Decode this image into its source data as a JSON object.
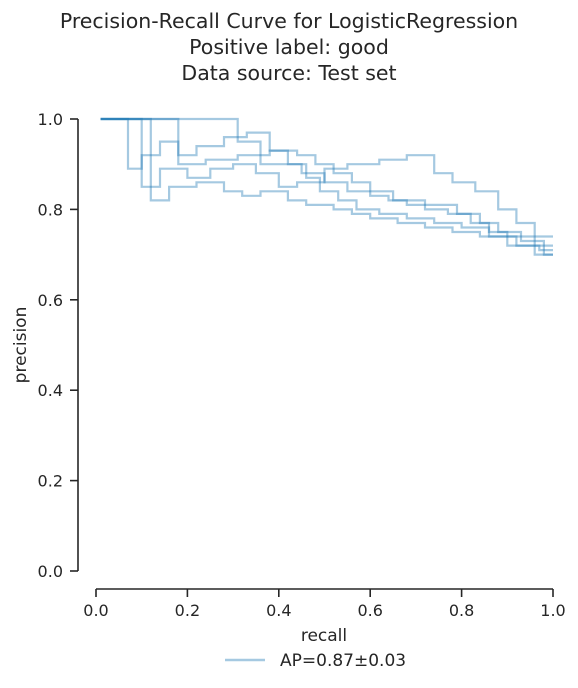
{
  "chart_data": {
    "type": "line",
    "title_lines": [
      "Precision-Recall Curve for LogisticRegression",
      "Positive label: good",
      "Data source: Test set"
    ],
    "xlabel": "recall",
    "ylabel": "precision",
    "xlim": [
      0,
      1
    ],
    "ylim": [
      0,
      1
    ],
    "x_ticks": [
      0.0,
      0.2,
      0.4,
      0.6,
      0.8,
      1.0
    ],
    "x_tick_labels": [
      "0.0",
      "0.2",
      "0.4",
      "0.6",
      "0.8",
      "1.0"
    ],
    "y_ticks": [
      0.0,
      0.2,
      0.4,
      0.6,
      0.8,
      1.0
    ],
    "y_tick_labels": [
      "0.0",
      "0.2",
      "0.4",
      "0.6",
      "0.8",
      "1.0"
    ],
    "grid": false,
    "step": true,
    "legend": {
      "position": "bottom-center",
      "label": "AP=0.87±0.03"
    },
    "series_color": "#1f77b4",
    "series_opacity": 0.4,
    "series": [
      {
        "points": [
          [
            0.01,
            1.0
          ],
          [
            0.31,
            1.0
          ],
          [
            0.31,
            0.95
          ],
          [
            0.36,
            0.95
          ],
          [
            0.36,
            0.9
          ],
          [
            0.45,
            0.9
          ],
          [
            0.45,
            0.88
          ],
          [
            0.5,
            0.88
          ],
          [
            0.5,
            0.86
          ],
          [
            0.55,
            0.86
          ],
          [
            0.55,
            0.84
          ],
          [
            0.6,
            0.84
          ],
          [
            0.6,
            0.83
          ],
          [
            0.64,
            0.83
          ],
          [
            0.64,
            0.82
          ],
          [
            0.68,
            0.82
          ],
          [
            0.68,
            0.81
          ],
          [
            0.72,
            0.81
          ],
          [
            0.72,
            0.8
          ],
          [
            0.77,
            0.8
          ],
          [
            0.77,
            0.79
          ],
          [
            0.82,
            0.79
          ],
          [
            0.82,
            0.77
          ],
          [
            0.86,
            0.77
          ],
          [
            0.86,
            0.75
          ],
          [
            0.9,
            0.75
          ],
          [
            0.9,
            0.74
          ],
          [
            0.96,
            0.74
          ],
          [
            0.96,
            0.72
          ],
          [
            1.0,
            0.72
          ]
        ]
      },
      {
        "points": [
          [
            0.01,
            1.0
          ],
          [
            0.18,
            1.0
          ],
          [
            0.18,
            0.92
          ],
          [
            0.22,
            0.92
          ],
          [
            0.22,
            0.94
          ],
          [
            0.28,
            0.94
          ],
          [
            0.28,
            0.96
          ],
          [
            0.33,
            0.96
          ],
          [
            0.33,
            0.97
          ],
          [
            0.38,
            0.97
          ],
          [
            0.38,
            0.93
          ],
          [
            0.42,
            0.93
          ],
          [
            0.42,
            0.9
          ],
          [
            0.46,
            0.9
          ],
          [
            0.46,
            0.87
          ],
          [
            0.49,
            0.87
          ],
          [
            0.49,
            0.84
          ],
          [
            0.53,
            0.84
          ],
          [
            0.53,
            0.82
          ],
          [
            0.57,
            0.82
          ],
          [
            0.57,
            0.8
          ],
          [
            0.62,
            0.8
          ],
          [
            0.62,
            0.79
          ],
          [
            0.68,
            0.79
          ],
          [
            0.68,
            0.78
          ],
          [
            0.74,
            0.78
          ],
          [
            0.74,
            0.77
          ],
          [
            0.8,
            0.77
          ],
          [
            0.8,
            0.76
          ],
          [
            0.86,
            0.76
          ],
          [
            0.86,
            0.74
          ],
          [
            0.92,
            0.74
          ],
          [
            0.92,
            0.72
          ],
          [
            0.97,
            0.72
          ],
          [
            0.97,
            0.71
          ],
          [
            1.0,
            0.71
          ]
        ]
      },
      {
        "points": [
          [
            0.01,
            1.0
          ],
          [
            0.07,
            1.0
          ],
          [
            0.07,
            0.89
          ],
          [
            0.1,
            0.89
          ],
          [
            0.1,
            0.92
          ],
          [
            0.14,
            0.92
          ],
          [
            0.14,
            0.95
          ],
          [
            0.18,
            0.95
          ],
          [
            0.18,
            0.9
          ],
          [
            0.24,
            0.9
          ],
          [
            0.24,
            0.91
          ],
          [
            0.31,
            0.91
          ],
          [
            0.31,
            0.92
          ],
          [
            0.38,
            0.92
          ],
          [
            0.38,
            0.93
          ],
          [
            0.44,
            0.93
          ],
          [
            0.44,
            0.92
          ],
          [
            0.48,
            0.92
          ],
          [
            0.48,
            0.9
          ],
          [
            0.52,
            0.9
          ],
          [
            0.52,
            0.88
          ],
          [
            0.56,
            0.88
          ],
          [
            0.56,
            0.86
          ],
          [
            0.6,
            0.86
          ],
          [
            0.6,
            0.84
          ],
          [
            0.65,
            0.84
          ],
          [
            0.65,
            0.82
          ],
          [
            0.72,
            0.82
          ],
          [
            0.72,
            0.81
          ],
          [
            0.79,
            0.81
          ],
          [
            0.79,
            0.79
          ],
          [
            0.84,
            0.79
          ],
          [
            0.84,
            0.77
          ],
          [
            0.88,
            0.77
          ],
          [
            0.88,
            0.75
          ],
          [
            0.93,
            0.75
          ],
          [
            0.93,
            0.73
          ],
          [
            0.98,
            0.73
          ],
          [
            0.98,
            0.7
          ],
          [
            1.0,
            0.7
          ]
        ]
      },
      {
        "points": [
          [
            0.01,
            1.0
          ],
          [
            0.1,
            1.0
          ],
          [
            0.1,
            0.85
          ],
          [
            0.14,
            0.85
          ],
          [
            0.14,
            0.89
          ],
          [
            0.2,
            0.89
          ],
          [
            0.2,
            0.87
          ],
          [
            0.25,
            0.87
          ],
          [
            0.25,
            0.89
          ],
          [
            0.3,
            0.89
          ],
          [
            0.3,
            0.9
          ],
          [
            0.35,
            0.9
          ],
          [
            0.35,
            0.88
          ],
          [
            0.4,
            0.88
          ],
          [
            0.4,
            0.85
          ],
          [
            0.44,
            0.85
          ],
          [
            0.44,
            0.86
          ],
          [
            0.5,
            0.86
          ],
          [
            0.5,
            0.89
          ],
          [
            0.55,
            0.89
          ],
          [
            0.55,
            0.9
          ],
          [
            0.62,
            0.9
          ],
          [
            0.62,
            0.91
          ],
          [
            0.68,
            0.91
          ],
          [
            0.68,
            0.92
          ],
          [
            0.74,
            0.92
          ],
          [
            0.74,
            0.88
          ],
          [
            0.78,
            0.88
          ],
          [
            0.78,
            0.86
          ],
          [
            0.83,
            0.86
          ],
          [
            0.83,
            0.84
          ],
          [
            0.88,
            0.84
          ],
          [
            0.88,
            0.8
          ],
          [
            0.92,
            0.8
          ],
          [
            0.92,
            0.77
          ],
          [
            0.96,
            0.77
          ],
          [
            0.96,
            0.74
          ],
          [
            1.0,
            0.74
          ]
        ]
      },
      {
        "points": [
          [
            0.01,
            1.0
          ],
          [
            0.12,
            1.0
          ],
          [
            0.12,
            0.82
          ],
          [
            0.16,
            0.82
          ],
          [
            0.16,
            0.85
          ],
          [
            0.22,
            0.85
          ],
          [
            0.22,
            0.86
          ],
          [
            0.28,
            0.86
          ],
          [
            0.28,
            0.84
          ],
          [
            0.32,
            0.84
          ],
          [
            0.32,
            0.83
          ],
          [
            0.36,
            0.83
          ],
          [
            0.36,
            0.84
          ],
          [
            0.42,
            0.84
          ],
          [
            0.42,
            0.82
          ],
          [
            0.46,
            0.82
          ],
          [
            0.46,
            0.81
          ],
          [
            0.52,
            0.81
          ],
          [
            0.52,
            0.8
          ],
          [
            0.56,
            0.8
          ],
          [
            0.56,
            0.79
          ],
          [
            0.6,
            0.79
          ],
          [
            0.6,
            0.78
          ],
          [
            0.66,
            0.78
          ],
          [
            0.66,
            0.77
          ],
          [
            0.72,
            0.77
          ],
          [
            0.72,
            0.76
          ],
          [
            0.78,
            0.76
          ],
          [
            0.78,
            0.75
          ],
          [
            0.84,
            0.75
          ],
          [
            0.84,
            0.74
          ],
          [
            0.9,
            0.74
          ],
          [
            0.9,
            0.72
          ],
          [
            0.96,
            0.72
          ],
          [
            0.96,
            0.7
          ],
          [
            1.0,
            0.7
          ]
        ]
      }
    ]
  }
}
